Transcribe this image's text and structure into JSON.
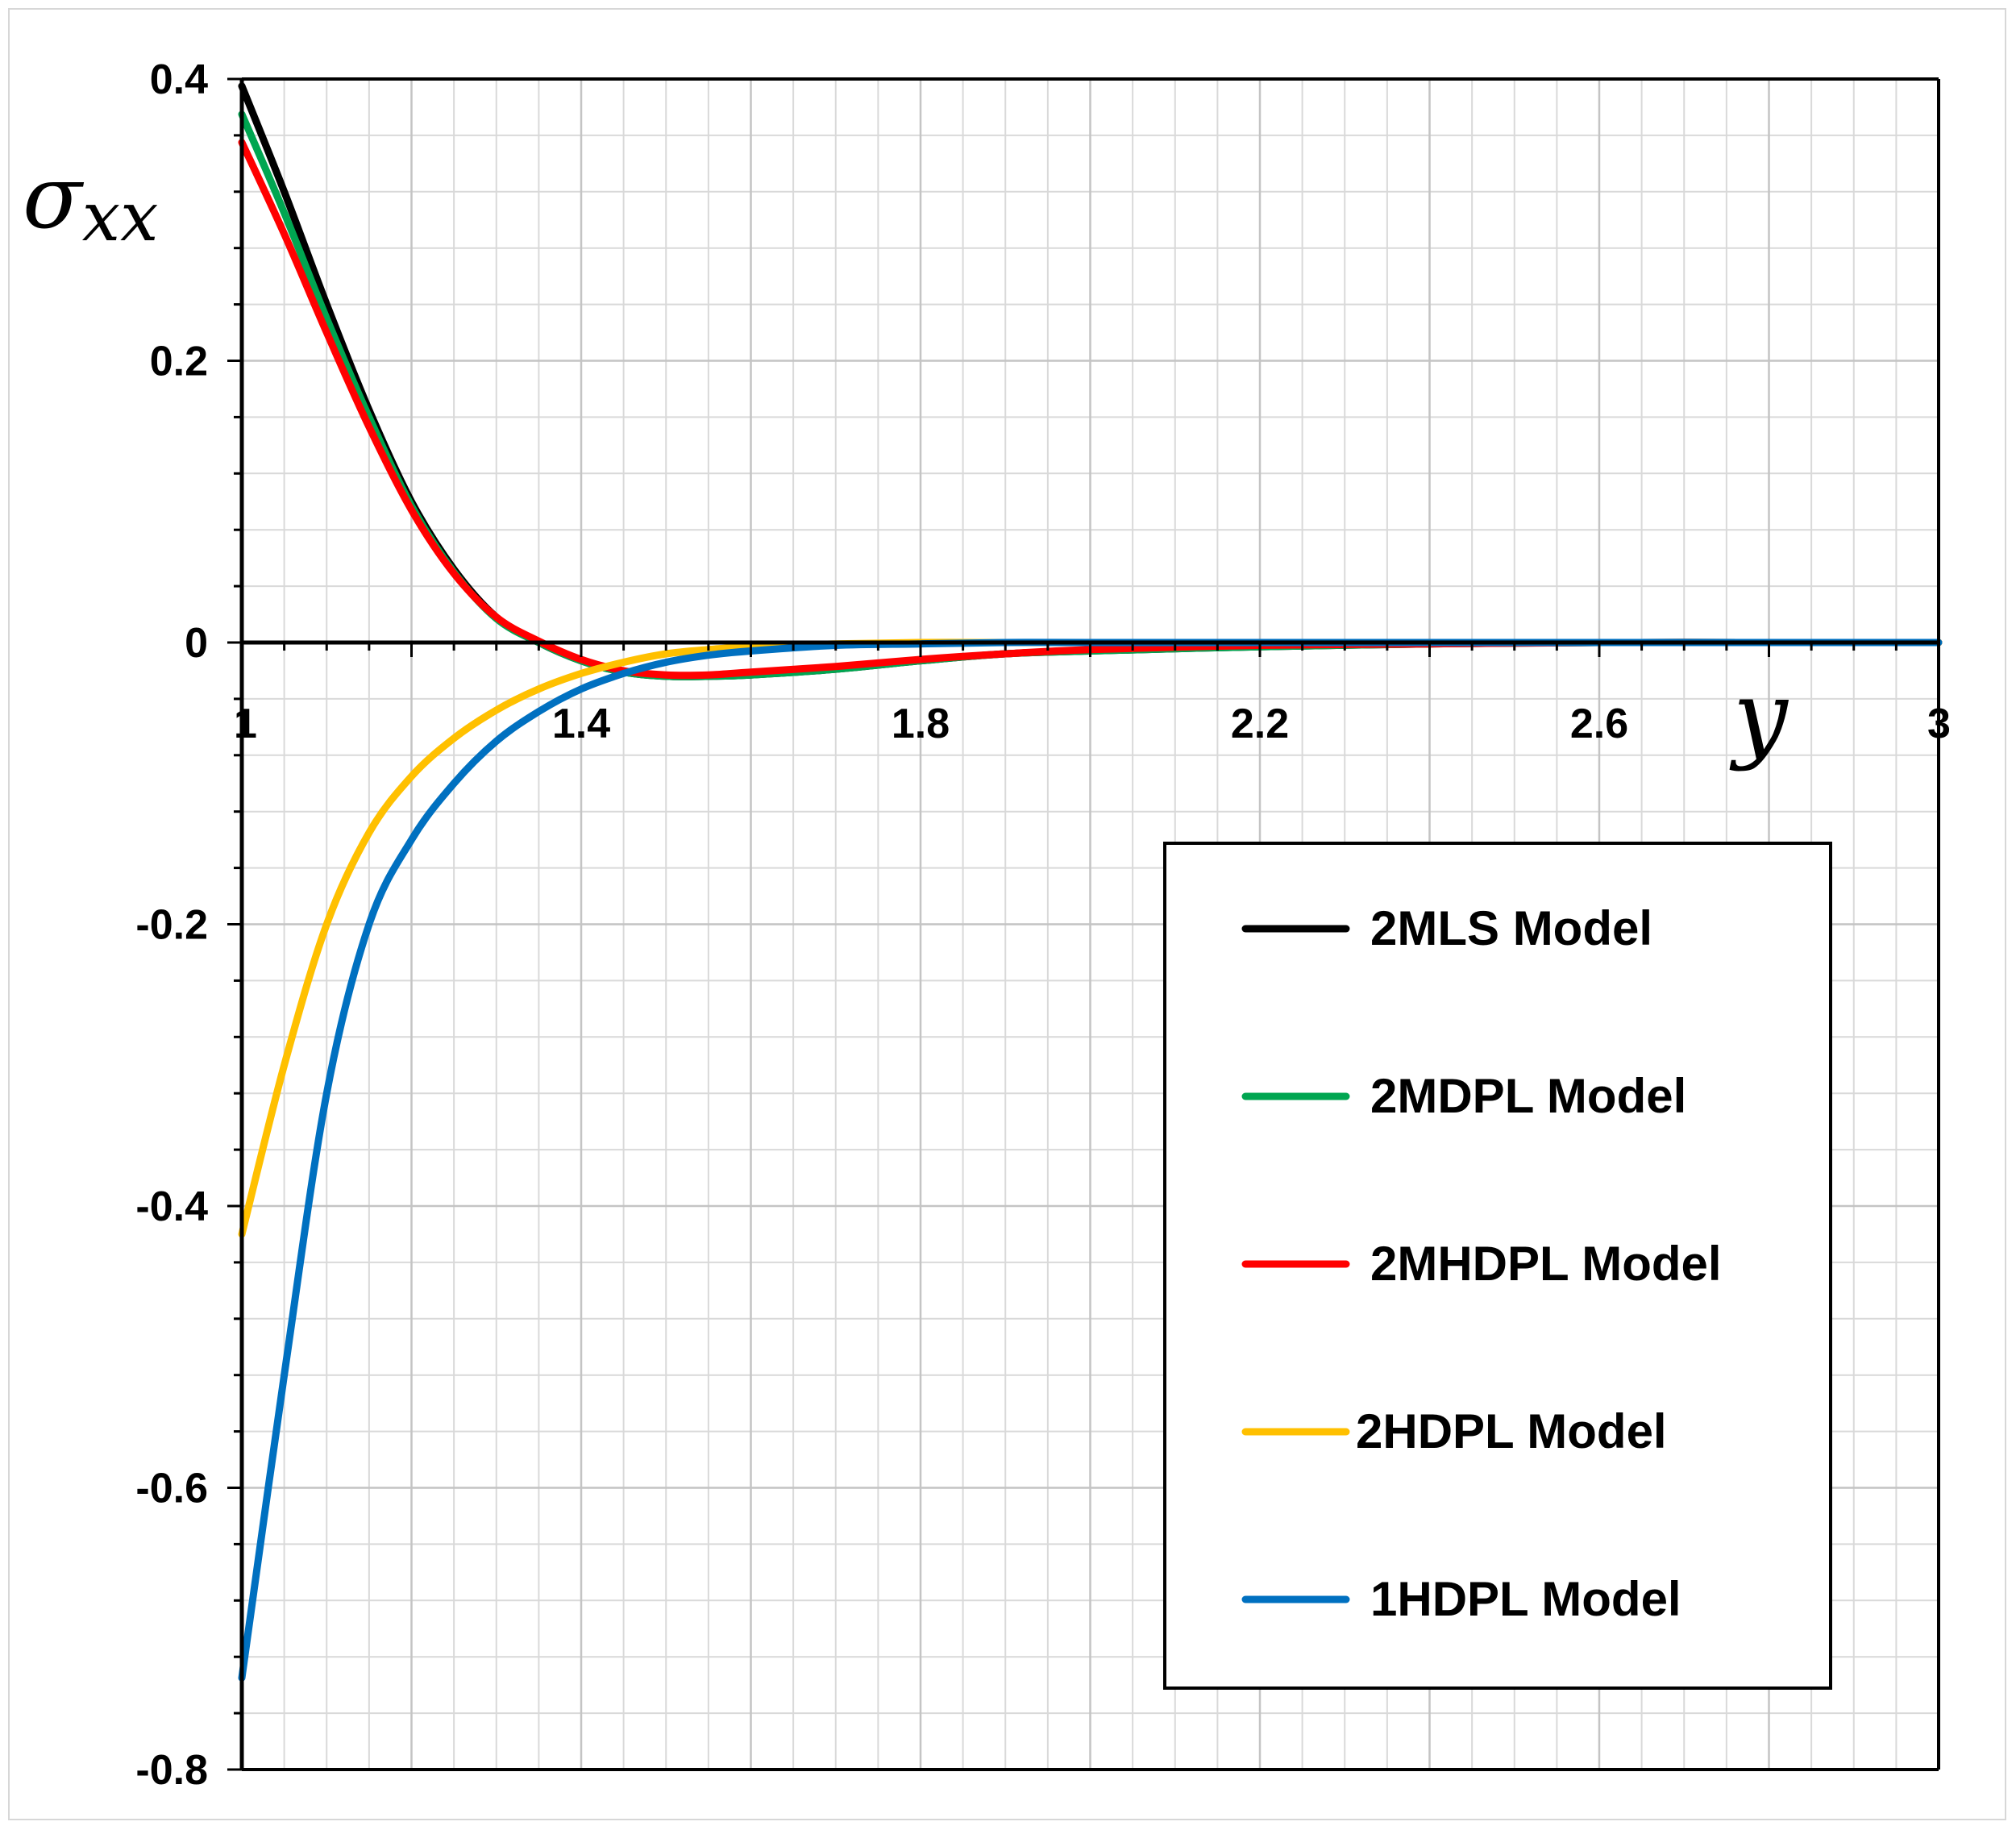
{
  "chart_data": {
    "type": "line",
    "title": "",
    "xlabel": "y",
    "ylabel": "σ",
    "ylabel_subscript": "xx",
    "xlim": [
      1,
      3
    ],
    "ylim": [
      -0.8,
      0.4
    ],
    "x_ticks": [
      "1",
      "1.4",
      "1.8",
      "2.2",
      "2.6",
      "3"
    ],
    "x_tick_values": [
      1,
      1.4,
      1.8,
      2.2,
      2.6,
      3
    ],
    "y_ticks": [
      "0.4",
      "0.2",
      "0",
      "-0.2",
      "-0.4",
      "-0.6",
      "-0.8"
    ],
    "y_tick_values": [
      0.4,
      0.2,
      0,
      -0.2,
      -0.4,
      -0.6,
      -0.8
    ],
    "grid": true,
    "legend_position": "bottom-right",
    "series": [
      {
        "name": "2MLS Model",
        "color": "#000000",
        "x": [
          1.0,
          1.05,
          1.1,
          1.15,
          1.2,
          1.25,
          1.3,
          1.35,
          1.4,
          1.45,
          1.5,
          1.55,
          1.6,
          1.7,
          1.8,
          1.9,
          2.0,
          2.2,
          2.4,
          2.6,
          2.8,
          3.0
        ],
        "values": [
          0.395,
          0.32,
          0.24,
          0.165,
          0.1,
          0.052,
          0.018,
          0.0,
          -0.013,
          -0.021,
          -0.024,
          -0.024,
          -0.023,
          -0.019,
          -0.013,
          -0.008,
          -0.006,
          -0.003,
          -0.001,
          0.0,
          0.0,
          0.0
        ]
      },
      {
        "name": "2MDPL Model",
        "color": "#00a651",
        "x": [
          1.0,
          1.05,
          1.1,
          1.15,
          1.2,
          1.25,
          1.3,
          1.35,
          1.4,
          1.45,
          1.5,
          1.55,
          1.6,
          1.7,
          1.8,
          1.9,
          2.0,
          2.2,
          2.4,
          2.6,
          2.8,
          3.0
        ],
        "values": [
          0.375,
          0.305,
          0.23,
          0.16,
          0.097,
          0.05,
          0.017,
          0.0,
          -0.013,
          -0.021,
          -0.024,
          -0.024,
          -0.023,
          -0.019,
          -0.013,
          -0.008,
          -0.006,
          -0.003,
          -0.001,
          0.0,
          0.0,
          0.0
        ]
      },
      {
        "name": "2MHDPL Model",
        "color": "#ff0000",
        "x": [
          1.0,
          1.05,
          1.1,
          1.15,
          1.2,
          1.25,
          1.3,
          1.35,
          1.4,
          1.45,
          1.5,
          1.55,
          1.6,
          1.7,
          1.8,
          1.9,
          2.0,
          2.2,
          2.4,
          2.6,
          2.8,
          3.0
        ],
        "values": [
          0.355,
          0.29,
          0.22,
          0.153,
          0.094,
          0.049,
          0.018,
          0.001,
          -0.012,
          -0.02,
          -0.023,
          -0.023,
          -0.021,
          -0.017,
          -0.012,
          -0.008,
          -0.005,
          -0.002,
          -0.001,
          0.0,
          0.0,
          0.0
        ]
      },
      {
        "name": "2HDPL Model",
        "color": "#ffc000",
        "x": [
          1.0,
          1.05,
          1.1,
          1.15,
          1.2,
          1.25,
          1.3,
          1.35,
          1.4,
          1.45,
          1.5,
          1.55,
          1.6,
          1.7,
          1.8,
          1.9,
          2.0,
          2.2,
          2.4,
          2.6,
          2.8,
          3.0
        ],
        "values": [
          -0.42,
          -0.3,
          -0.2,
          -0.135,
          -0.095,
          -0.068,
          -0.048,
          -0.033,
          -0.022,
          -0.014,
          -0.008,
          -0.005,
          -0.003,
          -0.001,
          0.0,
          0.0,
          0.0,
          0.0,
          0.0,
          0.0,
          0.0,
          0.0
        ]
      },
      {
        "name": "1HDPL Model",
        "color": "#0070c0",
        "x": [
          1.0,
          1.05,
          1.1,
          1.15,
          1.2,
          1.25,
          1.3,
          1.35,
          1.4,
          1.45,
          1.5,
          1.55,
          1.6,
          1.7,
          1.8,
          1.9,
          2.0,
          2.2,
          2.4,
          2.6,
          2.8,
          3.0
        ],
        "values": [
          -0.735,
          -0.52,
          -0.32,
          -0.2,
          -0.14,
          -0.1,
          -0.07,
          -0.049,
          -0.033,
          -0.022,
          -0.014,
          -0.009,
          -0.006,
          -0.002,
          -0.001,
          0.0,
          0.0,
          0.0,
          0.0,
          0.0,
          0.0,
          0.0
        ]
      }
    ]
  }
}
